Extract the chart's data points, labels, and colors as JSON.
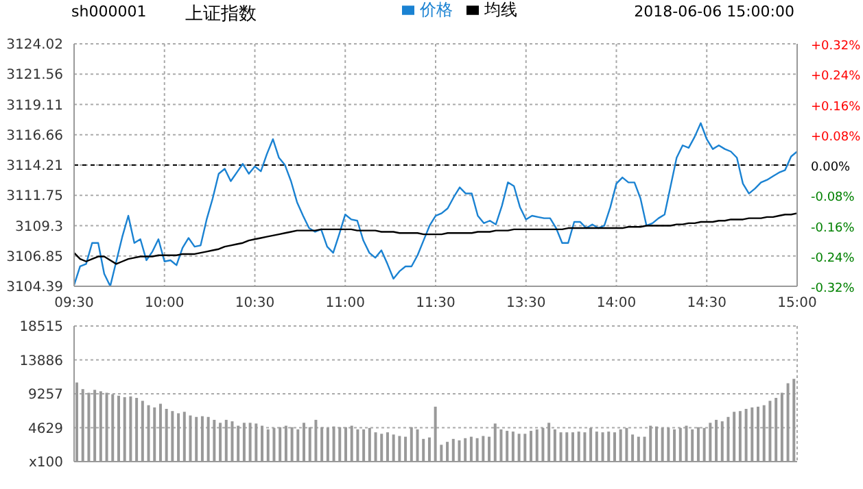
{
  "chart_data": [
    {
      "type": "line",
      "title": "上证指数",
      "subtitle": "sh000001",
      "annotations": [
        "2018-06-06 15:00:00"
      ],
      "categories": [
        "09:30",
        null,
        null,
        null,
        null,
        null,
        null,
        null,
        null,
        null,
        null,
        null,
        null,
        null,
        null,
        "10:00",
        null,
        null,
        null,
        null,
        null,
        null,
        null,
        null,
        null,
        null,
        null,
        null,
        null,
        null,
        "10:30",
        null,
        null,
        null,
        null,
        null,
        null,
        null,
        null,
        null,
        null,
        null,
        null,
        null,
        null,
        "11:00",
        null,
        null,
        null,
        null,
        null,
        null,
        null,
        null,
        null,
        null,
        null,
        null,
        null,
        null,
        "11:30",
        null,
        null,
        null,
        null,
        null,
        null,
        null,
        null,
        null,
        null,
        null,
        null,
        null,
        null,
        "13:30",
        null,
        null,
        null,
        null,
        null,
        null,
        null,
        null,
        null,
        null,
        null,
        null,
        null,
        null,
        "14:00",
        null,
        null,
        null,
        null,
        null,
        null,
        null,
        null,
        null,
        null,
        null,
        null,
        null,
        null,
        "14:30",
        null,
        null,
        null,
        null,
        null,
        null,
        null,
        null,
        null,
        null,
        null,
        null,
        null,
        null,
        "15:00"
      ],
      "ylim": [
        3104.39,
        3124.02
      ],
      "yticks": [
        3104.39,
        3106.85,
        3109.3,
        3111.75,
        3114.21,
        3116.66,
        3119.11,
        3121.56,
        3124.02
      ],
      "y2lim": [
        -0.32,
        0.32
      ],
      "y2ticks": [
        {
          "value": -0.32,
          "label": "-0.32%"
        },
        {
          "value": -0.24,
          "label": "-0.24%"
        },
        {
          "value": -0.16,
          "label": "-0.16%"
        },
        {
          "value": -0.08,
          "label": "-0.08%"
        },
        {
          "value": 0,
          "label": "0.00%"
        },
        {
          "value": 0.08,
          "label": "+0.08%"
        },
        {
          "value": 0.16,
          "label": "+0.16%"
        },
        {
          "value": 0.24,
          "label": "+0.24%"
        },
        {
          "value": 0.32,
          "label": "+0.32%"
        }
      ],
      "grid": true,
      "legend": "top",
      "marker": "none",
      "line_style": "solid",
      "ref_lines": [
        {
          "axis": "y",
          "value": 3114.21,
          "color": "#000000",
          "line_style": "dashed"
        }
      ],
      "series": [
        {
          "name": "价格",
          "color": "#1a82d2",
          "values": [
            3104.5,
            3106.0,
            3106.2,
            3107.9,
            3107.9,
            3105.4,
            3104.4,
            3106.4,
            3108.4,
            3110.1,
            3107.9,
            3108.2,
            3106.5,
            3107.2,
            3108.2,
            3106.4,
            3106.5,
            3106.1,
            3107.5,
            3108.3,
            3107.6,
            3107.7,
            3109.8,
            3111.5,
            3113.5,
            3113.9,
            3112.9,
            3113.6,
            3114.3,
            3113.5,
            3114.1,
            3113.7,
            3115.1,
            3116.3,
            3114.8,
            3114.2,
            3112.9,
            3111.2,
            3110.1,
            3109.1,
            3108.8,
            3109.0,
            3107.6,
            3107.1,
            3108.6,
            3110.2,
            3109.8,
            3109.7,
            3108.1,
            3107.1,
            3106.7,
            3107.3,
            3106.2,
            3105.0,
            3105.6,
            3106.0,
            3106.0,
            3106.9,
            3108.1,
            3109.3,
            3110.1,
            3110.3,
            3110.7,
            3111.6,
            3112.4,
            3111.9,
            3111.9,
            3110.1,
            3109.5,
            3109.7,
            3109.4,
            3110.9,
            3112.8,
            3112.5,
            3110.8,
            3109.8,
            3110.1,
            3110.0,
            3109.9,
            3109.9,
            3109.1,
            3107.9,
            3107.9,
            3109.6,
            3109.6,
            3109.1,
            3109.4,
            3109.1,
            3109.3,
            3110.8,
            3112.7,
            3113.2,
            3112.8,
            3112.8,
            3111.5,
            3109.3,
            3109.5,
            3109.9,
            3110.2,
            3112.5,
            3114.8,
            3115.8,
            3115.6,
            3116.5,
            3117.6,
            3116.3,
            3115.5,
            3115.8,
            3115.5,
            3115.3,
            3114.8,
            3112.7,
            3111.9,
            3112.3,
            3112.8,
            3113.0,
            3113.3,
            3113.6,
            3113.8,
            3114.9,
            3115.3
          ]
        },
        {
          "name": "均线",
          "color": "#000000",
          "values": [
            3107.1,
            3106.6,
            3106.4,
            3106.6,
            3106.8,
            3106.8,
            3106.5,
            3106.2,
            3106.4,
            3106.6,
            3106.7,
            3106.8,
            3106.8,
            3106.8,
            3106.9,
            3106.9,
            3106.9,
            3106.9,
            3107.0,
            3107.0,
            3107.0,
            3107.1,
            3107.2,
            3107.3,
            3107.4,
            3107.6,
            3107.7,
            3107.8,
            3107.9,
            3108.1,
            3108.2,
            3108.3,
            3108.4,
            3108.5,
            3108.6,
            3108.7,
            3108.8,
            3108.9,
            3108.9,
            3108.9,
            3108.9,
            3109.0,
            3109.0,
            3109.0,
            3109.0,
            3109.0,
            3109.0,
            3108.9,
            3108.9,
            3108.9,
            3108.9,
            3108.8,
            3108.8,
            3108.8,
            3108.7,
            3108.7,
            3108.7,
            3108.7,
            3108.6,
            3108.6,
            3108.6,
            3108.6,
            3108.7,
            3108.7,
            3108.7,
            3108.7,
            3108.7,
            3108.8,
            3108.8,
            3108.8,
            3108.9,
            3108.9,
            3108.9,
            3109.0,
            3109.0,
            3109.0,
            3109.0,
            3109.0,
            3109.0,
            3109.0,
            3109.0,
            3109.0,
            3109.1,
            3109.1,
            3109.1,
            3109.1,
            3109.1,
            3109.1,
            3109.1,
            3109.1,
            3109.1,
            3109.1,
            3109.2,
            3109.2,
            3109.2,
            3109.3,
            3109.3,
            3109.3,
            3109.3,
            3109.3,
            3109.4,
            3109.4,
            3109.5,
            3109.5,
            3109.6,
            3109.6,
            3109.6,
            3109.7,
            3109.7,
            3109.8,
            3109.8,
            3109.8,
            3109.9,
            3109.9,
            3109.9,
            3110.0,
            3110.0,
            3110.1,
            3110.2,
            3110.2,
            3110.3
          ]
        }
      ]
    },
    {
      "type": "bar",
      "color": "#999999",
      "tick_labels": "y",
      "grid": true,
      "categories": [
        null,
        null,
        null,
        null,
        null,
        null,
        null,
        null,
        null,
        null,
        null,
        null,
        null,
        null,
        null,
        null,
        null,
        null,
        null,
        null,
        null,
        null,
        null,
        null,
        null,
        null,
        null,
        null,
        null,
        null,
        null,
        null,
        null,
        null,
        null,
        null,
        null,
        null,
        null,
        null,
        null,
        null,
        null,
        null,
        null,
        null,
        null,
        null,
        null,
        null,
        null,
        null,
        null,
        null,
        null,
        null,
        null,
        null,
        null,
        null,
        null,
        null,
        null,
        null,
        null,
        null,
        null,
        null,
        null,
        null,
        null,
        null,
        null,
        null,
        null,
        null,
        null,
        null,
        null,
        null,
        null,
        null,
        null,
        null,
        null,
        null,
        null,
        null,
        null,
        null,
        null,
        null,
        null,
        null,
        null,
        null,
        null,
        null,
        null,
        null,
        null,
        null,
        null,
        null,
        null,
        null,
        null,
        null,
        null,
        null,
        null,
        null,
        null,
        null,
        null,
        null,
        null,
        null,
        null,
        null,
        null
      ],
      "ylim": [
        0,
        18515
      ],
      "yticks": [
        {
          "value": 0,
          "label": "x100"
        },
        4629,
        9257,
        13886,
        18515
      ],
      "values": [
        10800,
        9900,
        9400,
        9800,
        9600,
        9400,
        9200,
        9000,
        8800,
        8900,
        8700,
        8300,
        7700,
        7400,
        7900,
        7200,
        6900,
        6600,
        6800,
        6300,
        6100,
        6200,
        6100,
        5700,
        5300,
        5700,
        5500,
        4900,
        5300,
        5300,
        5200,
        4900,
        4400,
        4600,
        4700,
        4900,
        4700,
        4400,
        5300,
        4700,
        5700,
        4700,
        4600,
        4800,
        4700,
        4700,
        4900,
        4400,
        4400,
        4600,
        4000,
        3800,
        4000,
        3700,
        3500,
        3400,
        4700,
        4400,
        3100,
        3300,
        7500,
        2300,
        2700,
        3100,
        2900,
        3200,
        3400,
        3200,
        3500,
        3400,
        5200,
        4400,
        4200,
        4100,
        3800,
        3800,
        4200,
        4400,
        4600,
        5300,
        4400,
        4000,
        4000,
        4000,
        4100,
        4000,
        4600,
        4100,
        4000,
        4100,
        4000,
        4400,
        4600,
        3700,
        3400,
        3400,
        4900,
        4800,
        4600,
        4600,
        4400,
        4600,
        4900,
        4400,
        4700,
        4600,
        5300,
        5700,
        5500,
        6100,
        6800,
        6900,
        7200,
        7400,
        7500,
        7700,
        8300,
        8700,
        9400,
        10700,
        11300
      ]
    }
  ]
}
